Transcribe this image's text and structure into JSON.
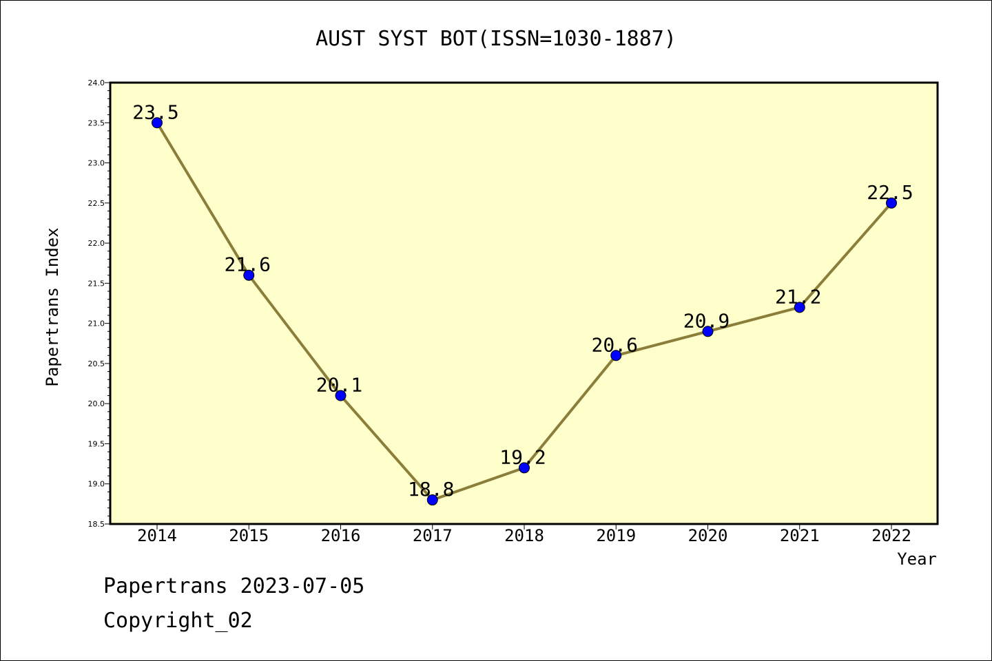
{
  "chart_data": {
    "type": "line",
    "title": "AUST SYST BOT(ISSN=1030-1887)",
    "xlabel": "Year",
    "ylabel": "Papertrans Index",
    "x": [
      2014,
      2015,
      2016,
      2017,
      2018,
      2019,
      2020,
      2021,
      2022
    ],
    "series": [
      {
        "values": [
          23.5,
          21.6,
          20.1,
          18.8,
          19.2,
          20.6,
          20.9,
          21.2,
          22.5
        ]
      }
    ],
    "data_labels": [
      "23.5",
      "21.6",
      "20.1",
      "18.8",
      "19.2",
      "20.6",
      "20.9",
      "21.2",
      "22.5"
    ],
    "ylim": [
      18.5,
      24.0
    ],
    "yticks": [
      "18.5",
      "19.0",
      "19.5",
      "20.0",
      "20.5",
      "21.0",
      "21.5",
      "22.0",
      "22.5",
      "23.0",
      "23.5",
      "24.0"
    ],
    "xticks": [
      "2014",
      "2015",
      "2016",
      "2017",
      "2018",
      "2019",
      "2020",
      "2021",
      "2022"
    ],
    "grid": false,
    "colors": {
      "plot_background": "#ffffcc",
      "line": "#8b7d3a",
      "marker": "#0000ff"
    }
  },
  "footer": {
    "line1": "Papertrans 2023-07-05",
    "line2": "Copyright_02"
  }
}
